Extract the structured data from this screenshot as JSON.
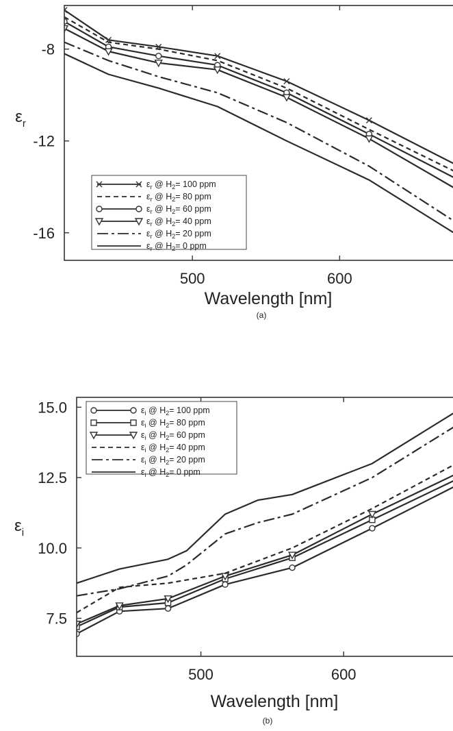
{
  "chart_data": [
    {
      "type": "line",
      "panel_label": "(a)",
      "xlabel": "Wavelength [nm]",
      "ylabel_main": "ε",
      "ylabel_sub": "r",
      "xlim": [
        413,
        690
      ],
      "ylim": [
        -17.2,
        -6.1
      ],
      "xticks": [
        500,
        600
      ],
      "yticks": [
        -8,
        -12,
        -16
      ],
      "grid": false,
      "legend_position": "bottom-left",
      "series": [
        {
          "name_main": "ε",
          "name_sub": "r",
          "name_mid": " @ H",
          "name_sub2": "2",
          "name_tail": "= 100 ppm",
          "style": "solid",
          "marker": "x",
          "x": [
            413,
            443,
            477,
            517,
            564,
            620,
            690
          ],
          "y": [
            -6.3,
            -7.6,
            -7.9,
            -8.3,
            -9.4,
            -11.1,
            -13.4
          ]
        },
        {
          "name_main": "ε",
          "name_sub": "r",
          "name_mid": " @ H",
          "name_sub2": "2",
          "name_tail": "= 80 ppm",
          "style": "dashed",
          "marker": "none",
          "x": [
            413,
            443,
            477,
            517,
            564,
            620,
            690
          ],
          "y": [
            -6.6,
            -7.7,
            -8.0,
            -8.5,
            -9.7,
            -11.5,
            -13.7
          ]
        },
        {
          "name_main": "ε",
          "name_sub": "r",
          "name_mid": " @ H",
          "name_sub2": "2",
          "name_tail": "= 60 ppm",
          "style": "solid",
          "marker": "circle",
          "x": [
            413,
            443,
            477,
            517,
            564,
            620,
            690
          ],
          "y": [
            -6.8,
            -7.9,
            -8.3,
            -8.7,
            -9.9,
            -11.7,
            -14.0
          ]
        },
        {
          "name_main": "ε",
          "name_sub": "r",
          "name_mid": " @ H",
          "name_sub2": "2",
          "name_tail": "= 40 ppm",
          "style": "solid",
          "marker": "triangle-down",
          "x": [
            413,
            443,
            477,
            517,
            564,
            620,
            690
          ],
          "y": [
            -7.1,
            -8.1,
            -8.6,
            -8.9,
            -10.1,
            -11.9,
            -14.5
          ]
        },
        {
          "name_main": "ε",
          "name_sub": "r",
          "name_mid": " @ H",
          "name_sub2": "2",
          "name_tail": "= 20 ppm",
          "style": "dashdot",
          "marker": "none",
          "x": [
            413,
            443,
            477,
            517,
            564,
            620,
            690
          ],
          "y": [
            -7.7,
            -8.5,
            -9.2,
            -9.9,
            -11.2,
            -13.1,
            -16.0
          ]
        },
        {
          "name_main": "ε",
          "name_sub": "r",
          "name_mid": " @ H",
          "name_sub2": "2",
          "name_tail": "= 0 ppm",
          "style": "solid",
          "marker": "none",
          "x": [
            413,
            443,
            477,
            517,
            564,
            620,
            690
          ],
          "y": [
            -8.2,
            -9.1,
            -9.7,
            -10.5,
            -12.0,
            -13.7,
            -16.5
          ]
        }
      ]
    },
    {
      "type": "line",
      "panel_label": "(b)",
      "xlabel": "Wavelength [nm]",
      "ylabel_main": "ε",
      "ylabel_sub": "i",
      "xlim": [
        413,
        690
      ],
      "ylim": [
        6.15,
        15.35
      ],
      "xticks": [
        500,
        600
      ],
      "yticks": [
        "7.5",
        "10.0",
        "12.5",
        "15.0"
      ],
      "grid": false,
      "legend_position": "top-left",
      "series": [
        {
          "name_main": "ε",
          "name_sub": "i",
          "name_mid": " @ H",
          "name_sub2": "2",
          "name_tail": "= 100 ppm",
          "style": "solid",
          "marker": "circle",
          "x": [
            413,
            443,
            477,
            517,
            564,
            620,
            690
          ],
          "y": [
            6.95,
            7.75,
            7.85,
            8.7,
            9.3,
            10.7,
            12.5
          ]
        },
        {
          "name_main": "ε",
          "name_sub": "i",
          "name_mid": " @ H",
          "name_sub2": "2",
          "name_tail": "= 80 ppm",
          "style": "solid",
          "marker": "square",
          "x": [
            413,
            443,
            477,
            517,
            564,
            620,
            690
          ],
          "y": [
            7.2,
            7.9,
            8.05,
            8.9,
            9.65,
            11.0,
            12.7
          ]
        },
        {
          "name_main": "ε",
          "name_sub": "i",
          "name_mid": " @ H",
          "name_sub2": "2",
          "name_tail": "= 60 ppm",
          "style": "solid",
          "marker": "triangle-down",
          "x": [
            413,
            443,
            477,
            517,
            564,
            620,
            690
          ],
          "y": [
            7.3,
            7.95,
            8.2,
            9.0,
            9.75,
            11.2,
            12.9
          ]
        },
        {
          "name_main": "ε",
          "name_sub": "i",
          "name_mid": " @ H",
          "name_sub2": "2",
          "name_tail": "= 40 ppm",
          "style": "dashed",
          "marker": "none",
          "x": [
            413,
            443,
            477,
            517,
            564,
            620,
            690
          ],
          "y": [
            7.7,
            8.6,
            8.75,
            9.1,
            10.0,
            11.4,
            13.3
          ]
        },
        {
          "name_main": "ε",
          "name_sub": "i",
          "name_mid": " @ H",
          "name_sub2": "2",
          "name_tail": "= 20 ppm",
          "style": "dashdot",
          "marker": "none",
          "x": [
            413,
            443,
            477,
            490,
            517,
            540,
            564,
            620,
            690
          ],
          "y": [
            8.3,
            8.55,
            9.0,
            9.4,
            10.5,
            10.9,
            11.2,
            12.5,
            14.7
          ]
        },
        {
          "name_main": "ε",
          "name_sub": "i",
          "name_mid": " @ H",
          "name_sub2": "2",
          "name_tail": "= 0 ppm",
          "style": "solid",
          "marker": "none",
          "x": [
            413,
            443,
            477,
            490,
            517,
            540,
            564,
            620,
            690
          ],
          "y": [
            8.75,
            9.25,
            9.6,
            9.9,
            11.2,
            11.7,
            11.9,
            13.0,
            15.2
          ]
        }
      ]
    }
  ]
}
